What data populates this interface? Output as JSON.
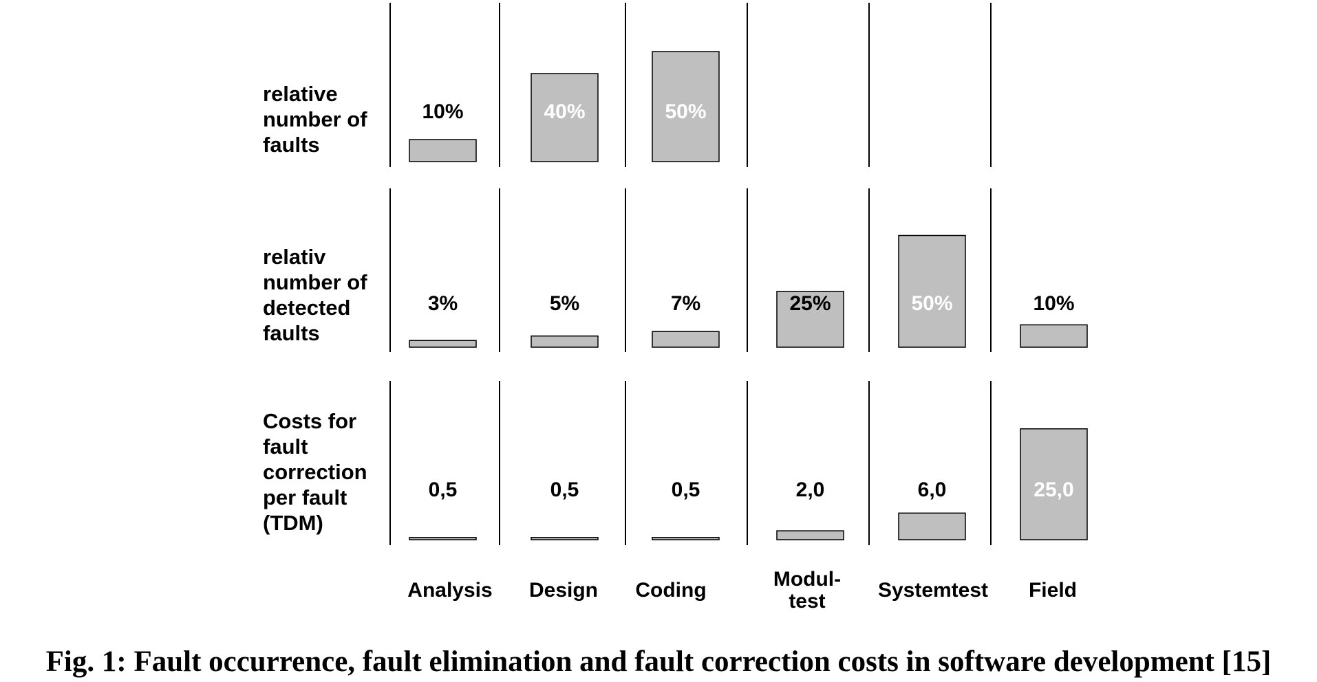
{
  "chart_data": {
    "type": "bar",
    "categories": [
      "Analysis",
      "Design",
      "Coding",
      "Modul-\ntest",
      "Systemtest",
      "Field"
    ],
    "rows": [
      {
        "label": "relative\nnumber of\nfaults",
        "values": [
          10,
          40,
          50,
          null,
          null,
          null
        ],
        "value_labels": [
          "10%",
          "40%",
          "50%",
          "",
          "",
          ""
        ]
      },
      {
        "label": "relativ\nnumber of\ndetected\nfaults",
        "values": [
          3,
          5,
          7,
          25,
          50,
          10
        ],
        "value_labels": [
          "3%",
          "5%",
          "7%",
          "25%",
          "50%",
          "10%"
        ]
      },
      {
        "label": "Costs for\nfault\ncorrection\nper fault\n(TDM)",
        "values": [
          0.5,
          0.5,
          0.5,
          2.0,
          6.0,
          25.0
        ],
        "value_labels": [
          "0,5",
          "0,5",
          "0,5",
          "2,0",
          "6,0",
          "25,0"
        ]
      }
    ],
    "caption": "Fig. 1: Fault occurrence, fault elimination and fault correction costs in software development [15]",
    "bar_color": "#bfbfbf"
  }
}
